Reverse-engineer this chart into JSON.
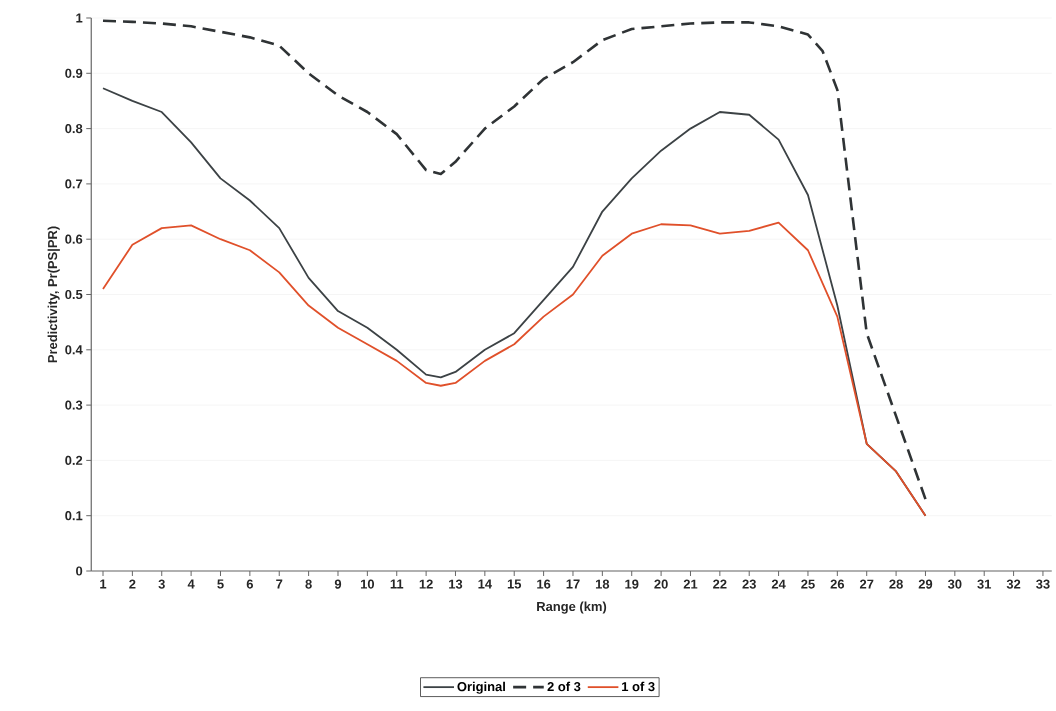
{
  "chart_data": {
    "type": "line",
    "xlabel": "Range (km)",
    "ylabel": "Predictivity, Pr(PS|PR)",
    "xlim": [
      0.6,
      33.3
    ],
    "xticks": [
      1,
      2,
      3,
      4,
      5,
      6,
      7,
      8,
      9,
      10,
      11,
      12,
      13,
      14,
      15,
      16,
      17,
      18,
      19,
      20,
      21,
      22,
      23,
      24,
      25,
      26,
      27,
      28,
      29,
      30,
      31,
      32,
      33
    ],
    "ylim": [
      0,
      1
    ],
    "yticks": [
      0,
      0.1,
      0.2,
      0.3,
      0.4,
      0.5,
      0.6,
      0.7,
      0.8,
      0.9,
      1
    ],
    "grid": "y",
    "legend": "bottom",
    "marker": "none",
    "series": [
      {
        "name": "Original",
        "color": "#3c4245",
        "line_style": "solid",
        "x": [
          1,
          2,
          3,
          4,
          5,
          6,
          7,
          8,
          9,
          10,
          11,
          12,
          12.5,
          13,
          14,
          15,
          16,
          17,
          18,
          19,
          20,
          21,
          22,
          23,
          24,
          25,
          26,
          27,
          28,
          29
        ],
        "values": [
          0.873,
          0.85,
          0.83,
          0.775,
          0.71,
          0.67,
          0.62,
          0.53,
          0.47,
          0.44,
          0.4,
          0.355,
          0.35,
          0.36,
          0.4,
          0.43,
          0.49,
          0.55,
          0.65,
          0.71,
          0.76,
          0.8,
          0.83,
          0.825,
          0.78,
          0.68,
          0.48,
          0.23,
          0.18,
          0.1
        ]
      },
      {
        "name": "2 of 3",
        "color": "#2f3335",
        "line_style": "dashed",
        "x": [
          1,
          2,
          3,
          4,
          5,
          6,
          7,
          8,
          9,
          10,
          11,
          12,
          12.5,
          13,
          14,
          15,
          16,
          17,
          18,
          19,
          20,
          21,
          22,
          23,
          24,
          25,
          25.5,
          26,
          26.5,
          27,
          28,
          29
        ],
        "values": [
          0.995,
          0.993,
          0.99,
          0.985,
          0.975,
          0.965,
          0.95,
          0.9,
          0.86,
          0.83,
          0.79,
          0.725,
          0.718,
          0.74,
          0.8,
          0.84,
          0.89,
          0.92,
          0.96,
          0.98,
          0.985,
          0.99,
          0.992,
          0.992,
          0.985,
          0.97,
          0.94,
          0.87,
          0.65,
          0.43,
          0.28,
          0.13
        ]
      },
      {
        "name": "1 of 3",
        "color": "#e0502a",
        "line_style": "solid",
        "x": [
          1,
          2,
          3,
          4,
          5,
          6,
          7,
          8,
          9,
          10,
          11,
          12,
          12.5,
          13,
          14,
          15,
          16,
          17,
          18,
          19,
          20,
          21,
          22,
          23,
          24,
          25,
          26,
          27,
          28,
          29
        ],
        "values": [
          0.51,
          0.59,
          0.62,
          0.625,
          0.6,
          0.58,
          0.54,
          0.48,
          0.44,
          0.41,
          0.38,
          0.34,
          0.335,
          0.34,
          0.38,
          0.41,
          0.46,
          0.5,
          0.57,
          0.61,
          0.627,
          0.625,
          0.61,
          0.615,
          0.63,
          0.58,
          0.46,
          0.23,
          0.18,
          0.1
        ]
      }
    ]
  }
}
